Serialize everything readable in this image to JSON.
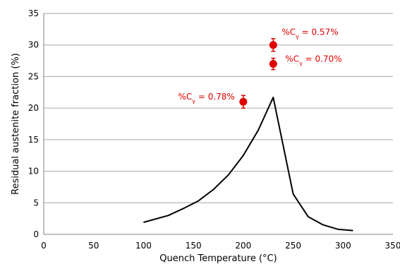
{
  "chart_data": {
    "type": "scatter",
    "title": "",
    "xlabel": "Quench Temperature (°C)",
    "ylabel": "Residual austenite fraction (%)",
    "xlim": [
      0,
      350
    ],
    "ylim": [
      0,
      35
    ],
    "xticks": [
      "0",
      "50",
      "100",
      "150",
      "200",
      "250",
      "300",
      "350"
    ],
    "yticks": [
      "0",
      "5",
      "10",
      "15",
      "20",
      "25",
      "30",
      "35"
    ],
    "grid": "horizontal",
    "series": [
      {
        "kind": "line",
        "color": "#000000",
        "x": [
          100,
          125,
          140,
          155,
          170,
          185,
          200,
          215,
          230,
          250,
          265,
          280,
          295,
          310
        ],
        "y": [
          1.9,
          3.0,
          4.1,
          5.3,
          7.1,
          9.4,
          12.5,
          16.5,
          21.7,
          6.4,
          2.8,
          1.5,
          0.8,
          0.6
        ]
      },
      {
        "kind": "scatter",
        "color": "#e00000",
        "points": [
          {
            "x": 230,
            "y": 30,
            "err": 1.0,
            "label_main": "%C",
            "label_sub": "γ",
            "label_rest": " = 0.57%"
          },
          {
            "x": 230,
            "y": 27,
            "err": 0.9,
            "label_main": "%C",
            "label_sub": "γ",
            "label_rest": " = 0.70%"
          },
          {
            "x": 200,
            "y": 21,
            "err": 1.0,
            "label_main": "%C",
            "label_sub": "γ",
            "label_rest": " = 0.78%"
          }
        ]
      }
    ]
  }
}
